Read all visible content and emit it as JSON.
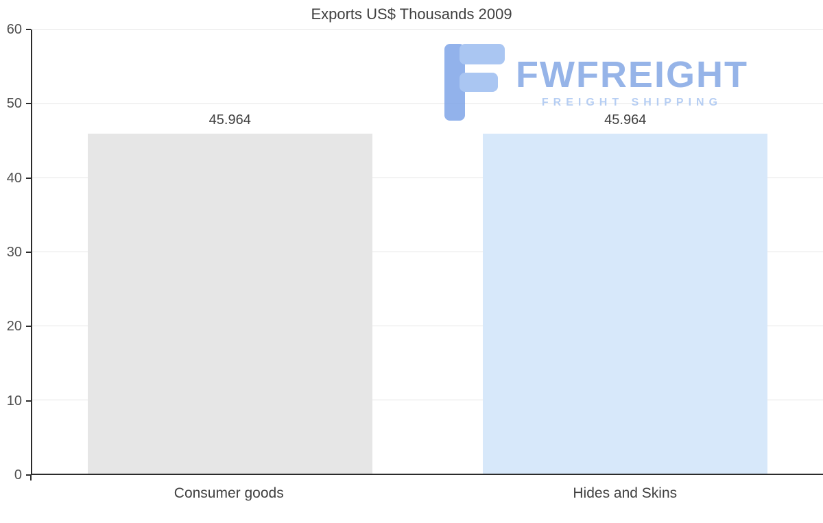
{
  "chart_data": {
    "type": "bar",
    "title": "Exports US$ Thousands 2009",
    "categories": [
      "Consumer goods",
      "Hides and Skins"
    ],
    "values": [
      45.964,
      45.964
    ],
    "value_labels": [
      "45.964",
      "45.964"
    ],
    "ylim": [
      0,
      60
    ],
    "yticks": [
      0,
      10,
      20,
      30,
      40,
      50,
      60
    ],
    "grid": true,
    "legend_position": "none",
    "bar_colors": [
      "#e6e6e6",
      "#d7e8fa"
    ],
    "axis_color": "#2b2b2b",
    "gridline_color": "#e5e5e5"
  },
  "watermark": {
    "brand": "FWFREIGHT",
    "tagline": "FREIGHT SHIPPING",
    "brand_color": "#84a7e4",
    "tagline_color": "#aac6f1"
  }
}
